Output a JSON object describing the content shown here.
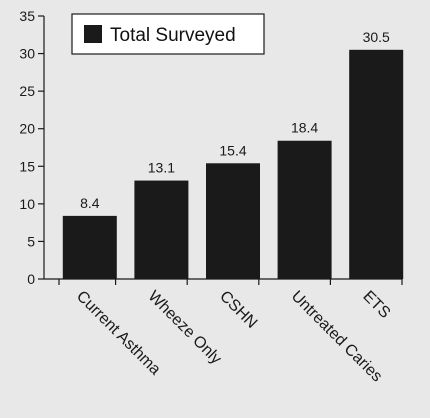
{
  "chart_data": {
    "type": "bar",
    "title": "",
    "xlabel": "",
    "ylabel": "",
    "ylim": [
      0,
      35
    ],
    "yticks": [
      0,
      5,
      10,
      15,
      20,
      25,
      30,
      35
    ],
    "categories": [
      "Current Asthma",
      "Wheeze Only",
      "CSHN",
      "Untreated Caries",
      "ETS"
    ],
    "series": [
      {
        "name": "Total Surveyed",
        "values": [
          8.4,
          13.1,
          15.4,
          18.4,
          30.5
        ]
      }
    ],
    "data_labels": [
      "8.4",
      "13.1",
      "15.4",
      "18.4",
      "30.5"
    ],
    "grid": false,
    "legend": {
      "position": "top-left",
      "entries": [
        "Total Surveyed"
      ]
    },
    "colors": {
      "bar": "#1a1a1a",
      "background": "#e8e8e8",
      "axis": "#1a1a1a",
      "legend_box_fill": "#ffffff"
    }
  }
}
